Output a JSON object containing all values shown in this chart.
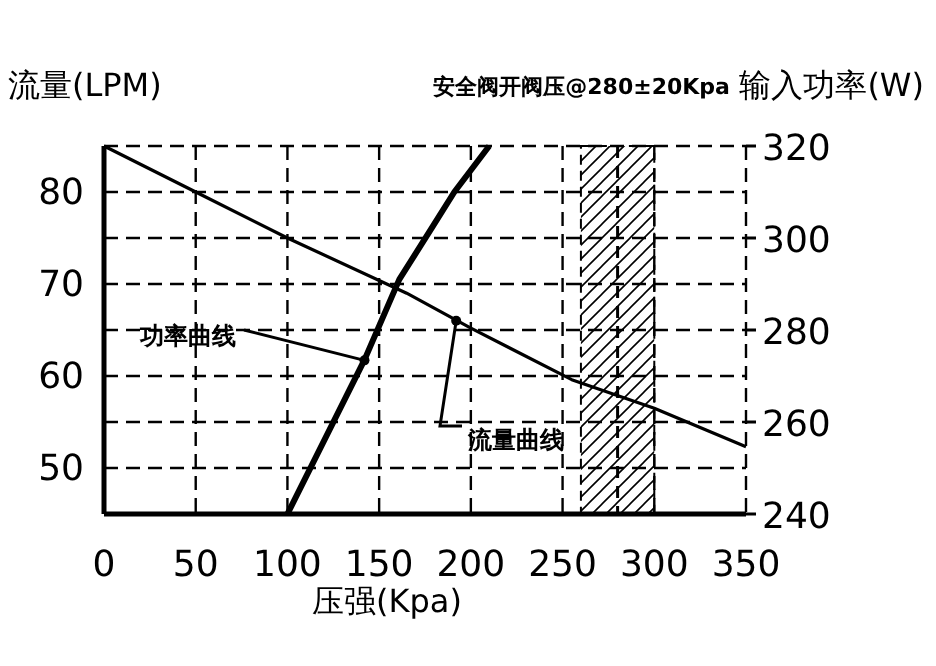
{
  "chart_data": {
    "type": "line",
    "xlabel": "压强(Kpa)",
    "ylabel": "流量(LPM)",
    "y2label": "输入功率(W)",
    "xlim": [
      0,
      350
    ],
    "xticks": [
      0,
      50,
      100,
      150,
      200,
      250,
      300,
      350
    ],
    "ylim": [
      45,
      85
    ],
    "yticks": [
      {
        "value": 45,
        "label": null
      },
      50,
      {
        "value": 55,
        "label": null
      },
      60,
      {
        "value": 65,
        "label": null
      },
      70,
      {
        "value": 75,
        "label": null
      },
      80,
      {
        "value": 85,
        "label": null
      }
    ],
    "y2lim": [
      240,
      320
    ],
    "y2ticks": [
      240,
      260,
      280,
      300,
      320
    ],
    "grid": true,
    "marker": "none",
    "line_style": "solid",
    "series": [
      {
        "color": "#000000",
        "x": [
          0,
          50,
          100,
          165,
          200,
          255,
          300,
          350
        ],
        "values": [
          85,
          80,
          75,
          69,
          65.2,
          59.6,
          56.5,
          52.3
        ]
      },
      {
        "color": "#000000",
        "axis": "y2",
        "x": [
          100,
          142,
          161,
          180,
          191,
          210
        ],
        "values": [
          240,
          273.5,
          291,
          303,
          310,
          320
        ]
      }
    ],
    "bands": [
      {
        "axis": "x",
        "from": 260,
        "to": 300,
        "label": "安全阀开阀压@280±20Kpa"
      }
    ],
    "ref_lines": [
      {
        "axis": "x",
        "value": 280,
        "line_style": "dashed"
      }
    ],
    "annotations": [
      {
        "text": "功率曲线",
        "x": 142,
        "y": 61.7
      },
      {
        "text": "流量曲线",
        "x": 192,
        "y": 66
      }
    ]
  }
}
